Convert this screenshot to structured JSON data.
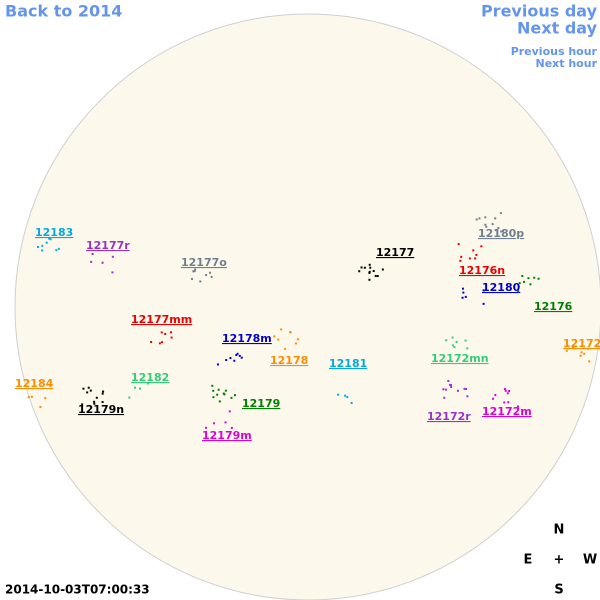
{
  "nav": {
    "back": "Back to 2014",
    "previous_day": "Previous day",
    "next_day": "Next day",
    "previous_hour": "Previous hour",
    "next_hour": "Next hour"
  },
  "regions": [
    {
      "label": "12183",
      "color": "#00aadd"
    },
    {
      "label": "12177r",
      "color": "#9932cc"
    },
    {
      "label": "12177o",
      "color": "#708090"
    },
    {
      "label": "12177",
      "color": "#000000"
    },
    {
      "label": "12180p",
      "color": "#708090"
    },
    {
      "label": "12176n",
      "color": "#ee0000"
    },
    {
      "label": "12180",
      "color": "#0000cc"
    },
    {
      "label": "12176",
      "color": "#007f00"
    },
    {
      "label": "12172",
      "color": "#ff8c00"
    },
    {
      "label": "12177mm",
      "color": "#ee0000"
    },
    {
      "label": "12178m",
      "color": "#0000cc"
    },
    {
      "label": "12178",
      "color": "#ff8c00"
    },
    {
      "label": "12181",
      "color": "#00aadd"
    },
    {
      "label": "12172mn",
      "color": "#33cc77"
    },
    {
      "label": "12184",
      "color": "#ff8c00"
    },
    {
      "label": "12182",
      "color": "#33cc77"
    },
    {
      "label": "12179n",
      "color": "#000000"
    },
    {
      "label": "12179",
      "color": "#007f00"
    },
    {
      "label": "12172r",
      "color": "#9932cc"
    },
    {
      "label": "12172m",
      "color": "#dd00dd"
    },
    {
      "label": "12179m",
      "color": "#dd00dd"
    }
  ],
  "compass": {
    "north": "N",
    "east": "E",
    "center": "+",
    "west": "W",
    "south": "S"
  },
  "timestamp": "2014-10-03T07:00:33"
}
